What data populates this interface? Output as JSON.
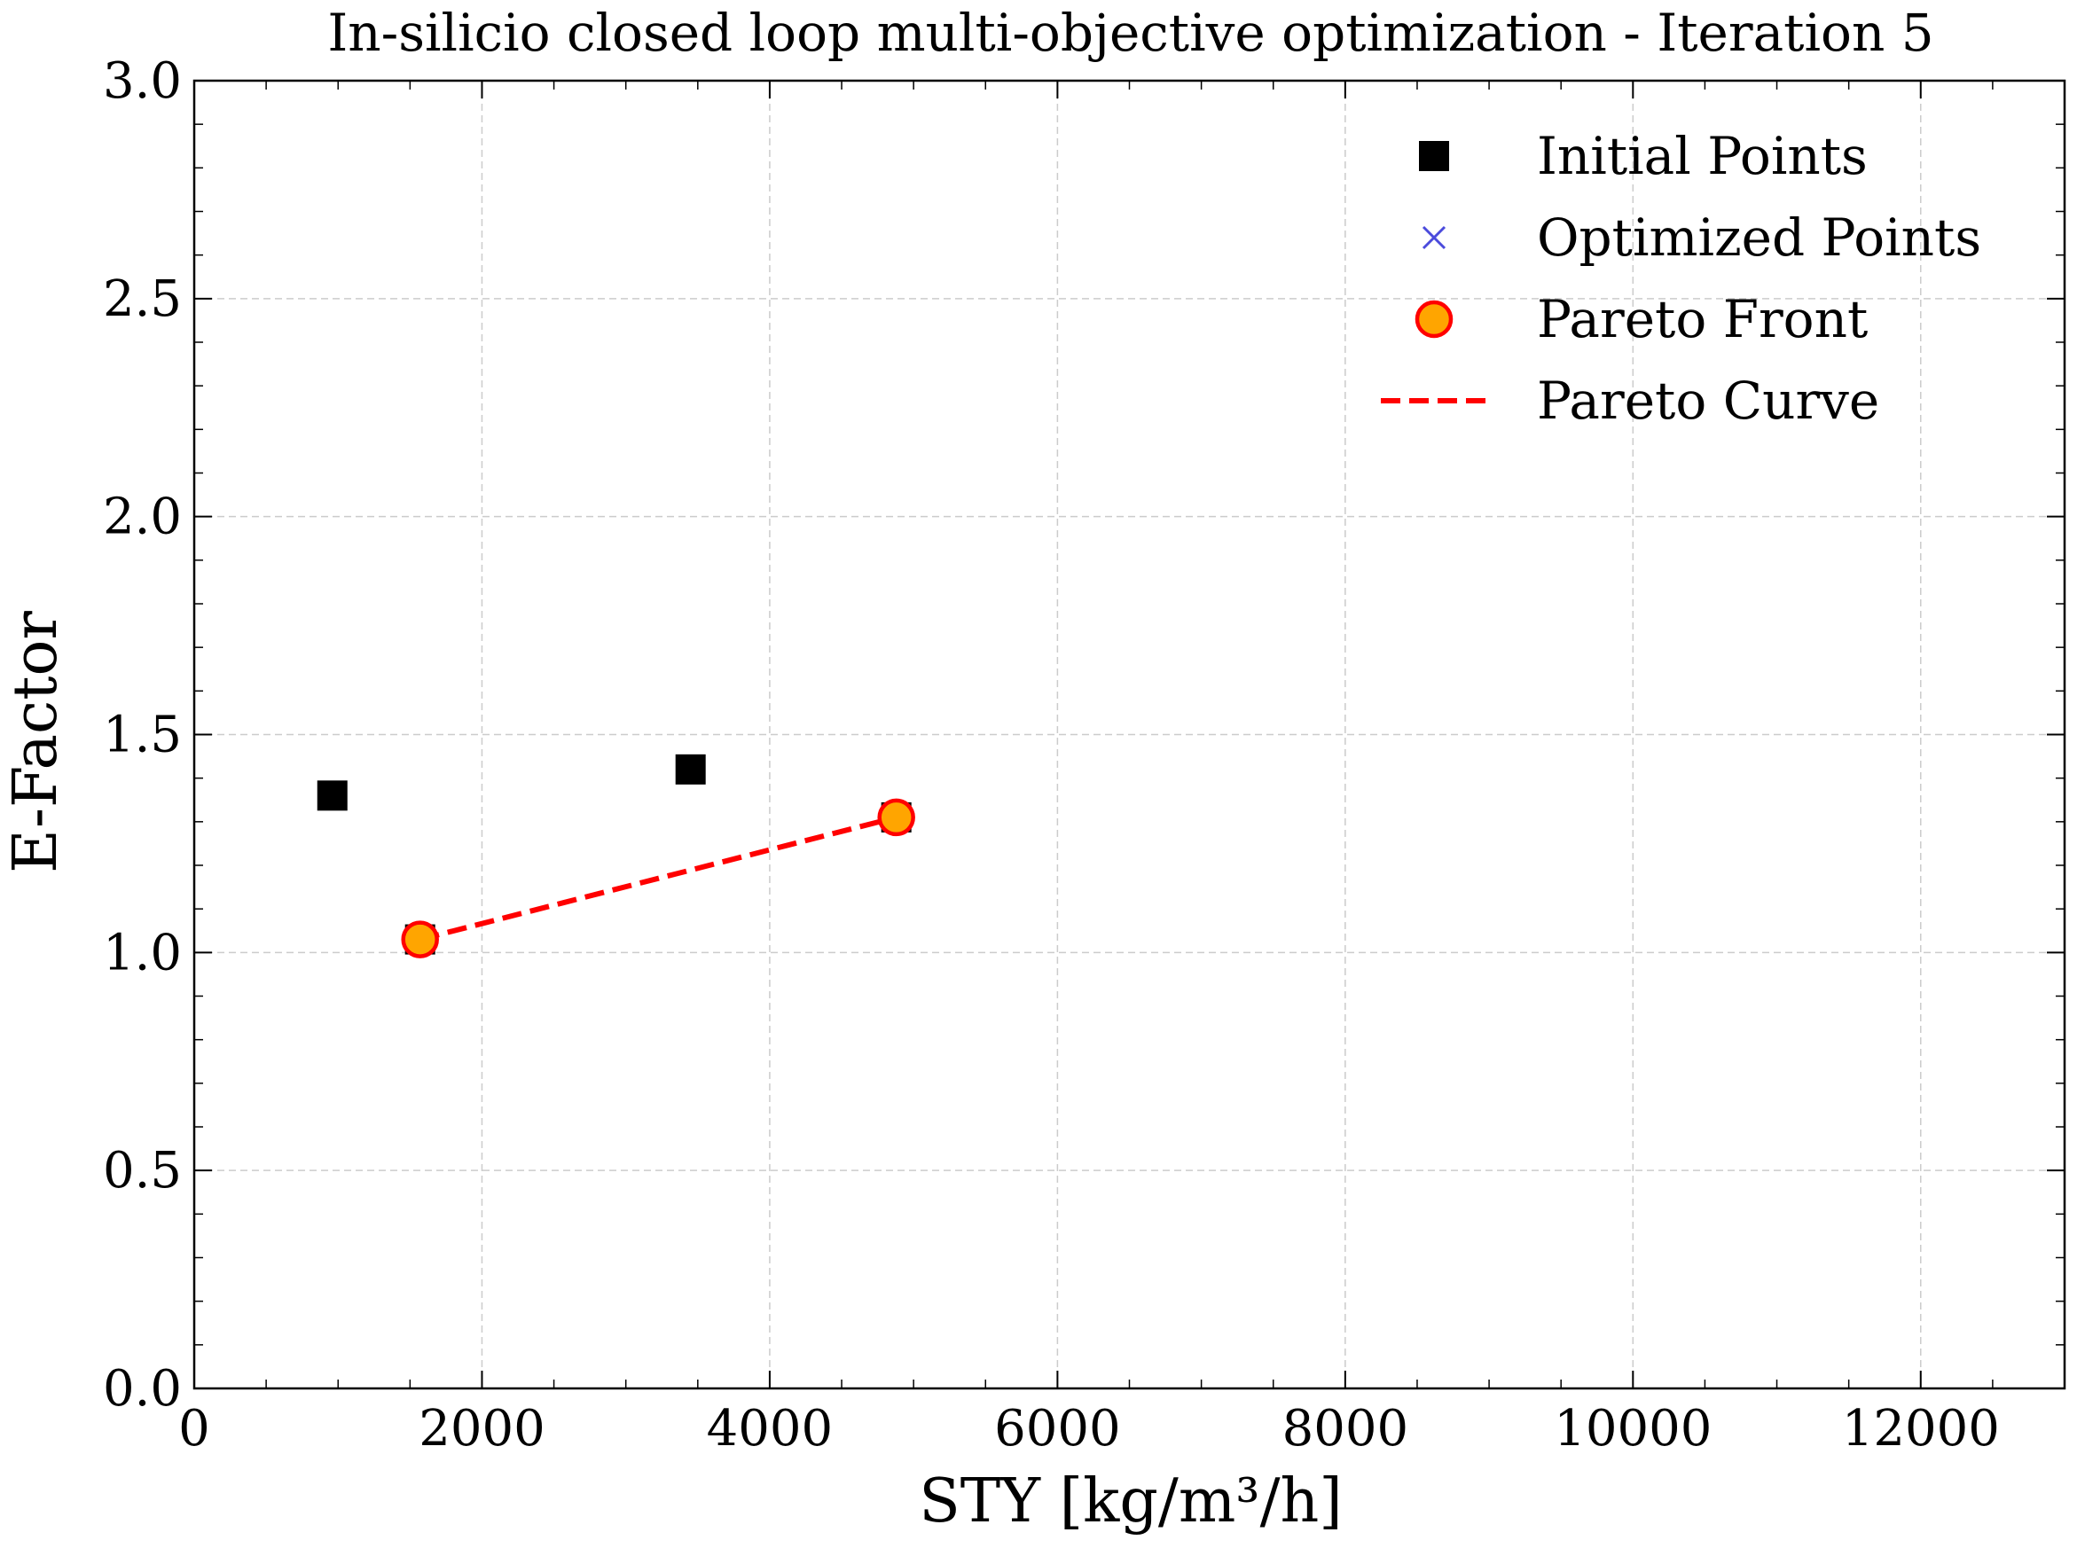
{
  "chart_data": {
    "type": "scatter",
    "title": "In-silicio closed loop multi-objective optimization - Iteration 5",
    "xlabel": "STY [kg/m³/h]",
    "ylabel": "E-Factor",
    "xlim": [
      0,
      13000
    ],
    "ylim": [
      0.0,
      3.0
    ],
    "xticks": [
      0,
      2000,
      4000,
      6000,
      8000,
      10000,
      12000
    ],
    "yticks": [
      0.0,
      0.5,
      1.0,
      1.5,
      2.0,
      2.5,
      3.0
    ],
    "xtick_labels": [
      "0",
      "2000",
      "4000",
      "6000",
      "8000",
      "10000",
      "12000"
    ],
    "ytick_labels": [
      "0.0",
      "0.5",
      "1.0",
      "1.5",
      "2.0",
      "2.5",
      "3.0"
    ],
    "grid": true,
    "legend_position": "top-right",
    "series": [
      {
        "name": "Initial Points",
        "kind": "square",
        "color": "#000000",
        "points": [
          [
            960,
            1.36
          ],
          [
            3450,
            1.42
          ],
          [
            1570,
            1.03
          ],
          [
            4880,
            1.31
          ]
        ]
      },
      {
        "name": "Optimized Points",
        "kind": "x",
        "color": "#4b4bdc",
        "points": []
      },
      {
        "name": "Pareto Front",
        "kind": "circle",
        "color": "#ffa500",
        "edge": "#ff0000",
        "points": [
          [
            1570,
            1.03
          ],
          [
            4880,
            1.31
          ]
        ]
      },
      {
        "name": "Pareto Curve",
        "kind": "dashed-line",
        "color": "#ff0000",
        "points": [
          [
            1570,
            1.03
          ],
          [
            4880,
            1.31
          ]
        ]
      }
    ]
  }
}
